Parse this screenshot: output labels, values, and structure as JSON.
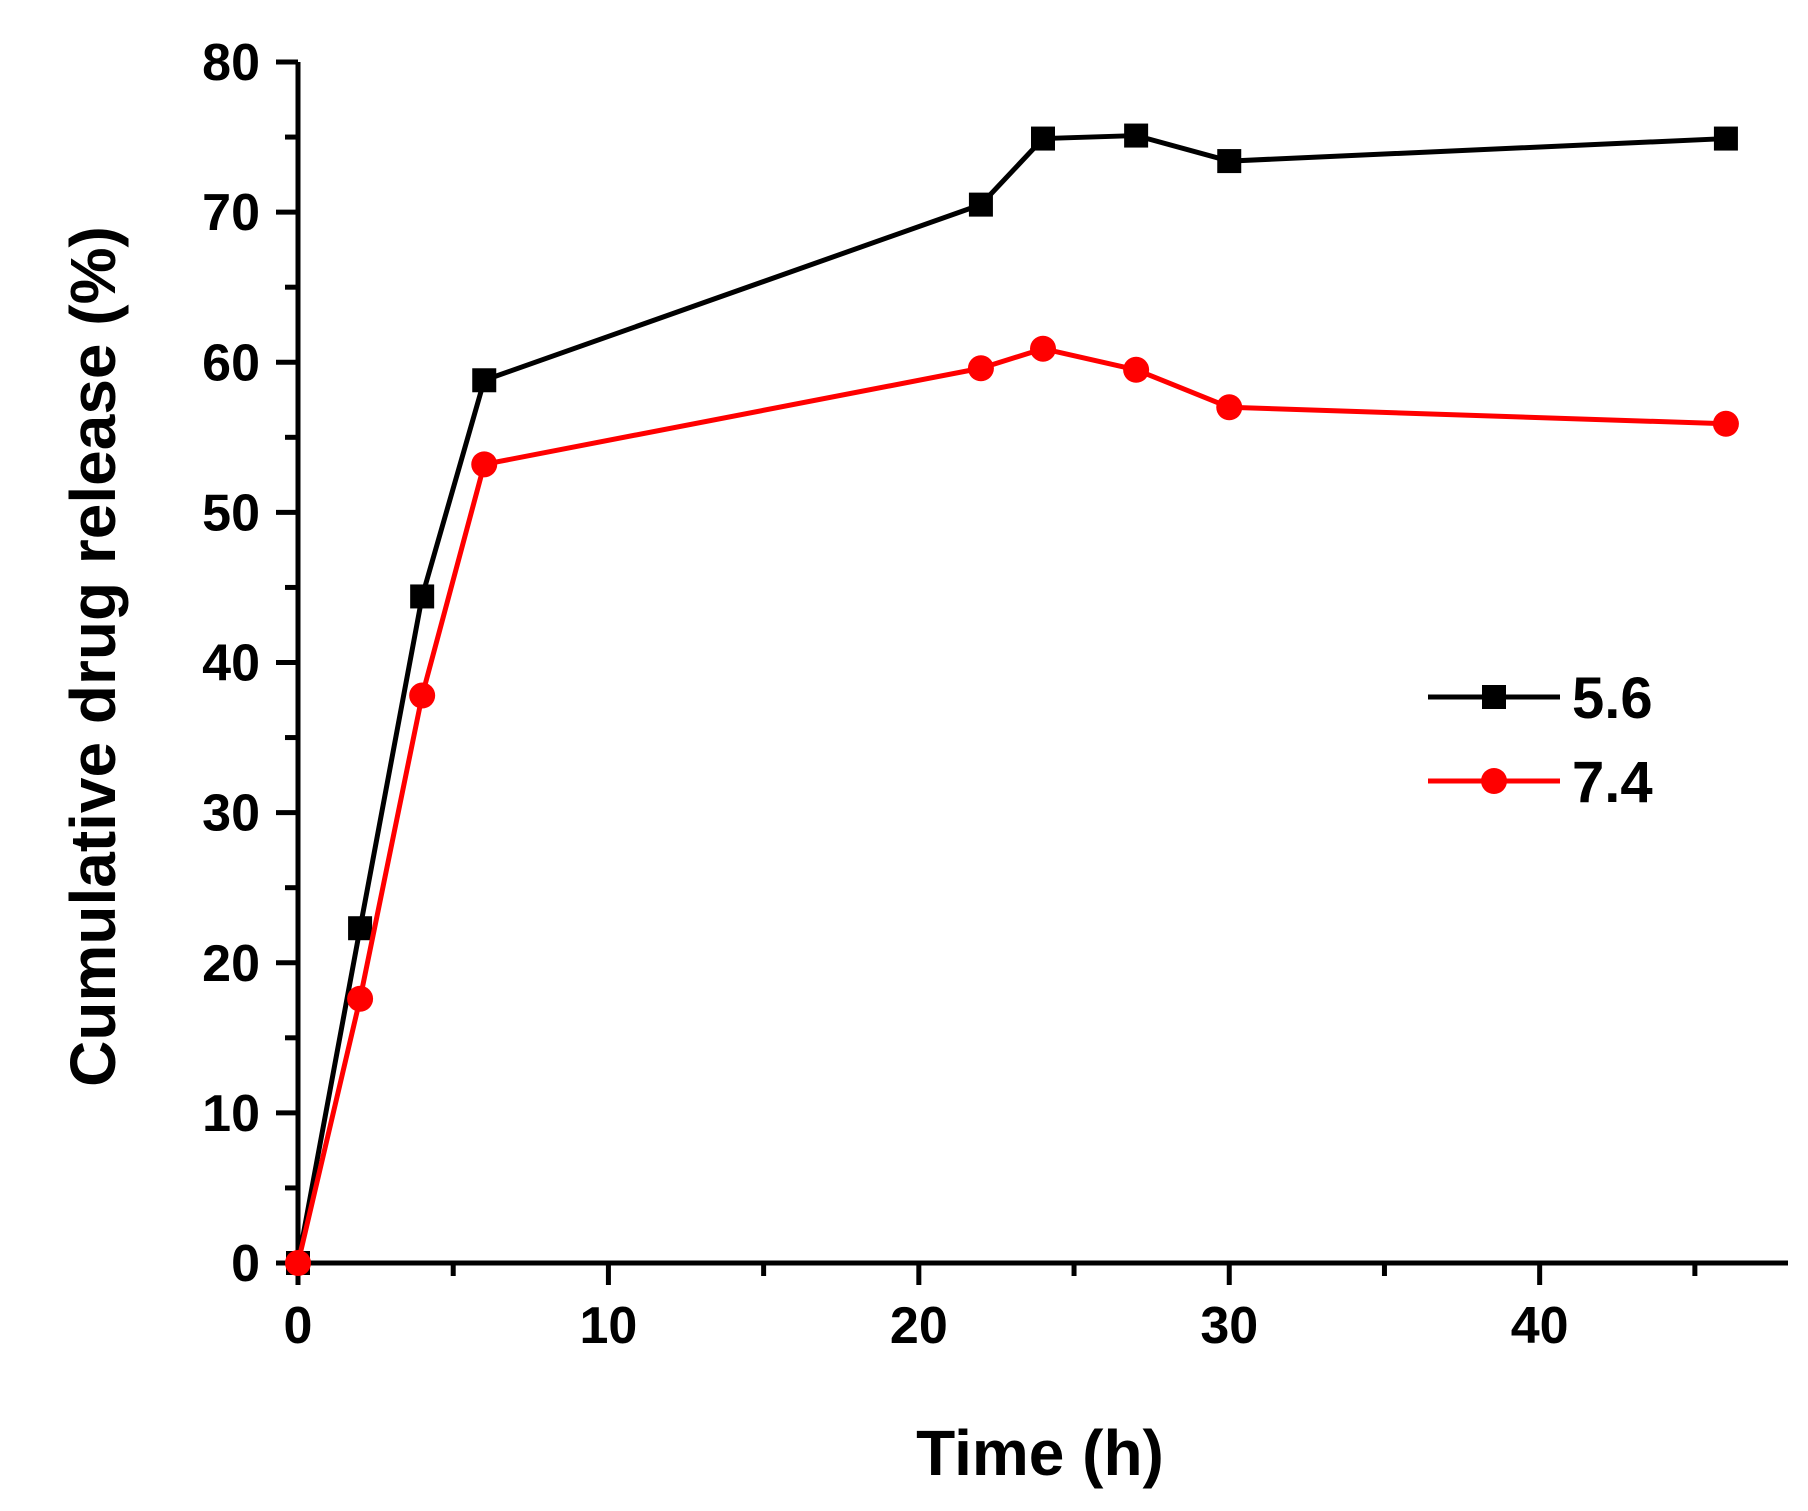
{
  "chart_data": {
    "type": "line",
    "title": "",
    "xlabel": "Time (h)",
    "ylabel": "Cumulative drug release (%)",
    "xlim": [
      0,
      48
    ],
    "ylim": [
      0,
      80
    ],
    "xticks": [
      0,
      10,
      20,
      30,
      40
    ],
    "yticks": [
      0,
      10,
      20,
      30,
      40,
      50,
      60,
      70,
      80
    ],
    "legend_position": "right",
    "series": [
      {
        "name": "5.6",
        "color": "#000000",
        "marker": "square",
        "x": [
          0,
          2,
          4,
          6,
          22,
          24,
          27,
          30,
          46
        ],
        "y": [
          0,
          22.3,
          44.4,
          58.8,
          70.5,
          74.9,
          75.1,
          73.4,
          74.9
        ]
      },
      {
        "name": "7.4",
        "color": "#ff0000",
        "marker": "circle",
        "x": [
          0,
          2,
          4,
          6,
          22,
          24,
          27,
          30,
          46
        ],
        "y": [
          0,
          17.6,
          37.8,
          53.2,
          59.6,
          60.9,
          59.5,
          57.0,
          55.9
        ]
      }
    ]
  }
}
